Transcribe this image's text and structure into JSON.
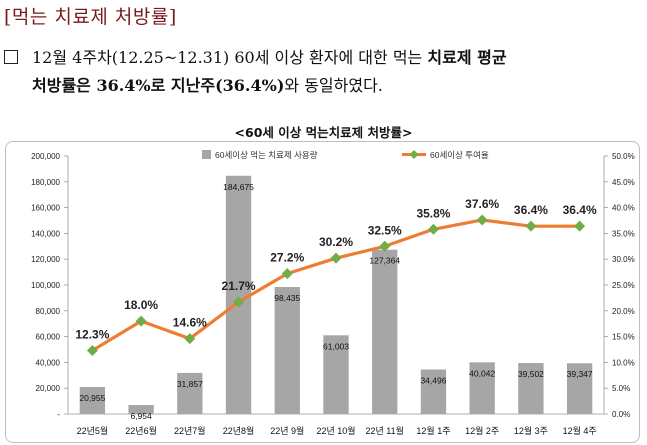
{
  "section_title": "[먹는 치료제 처방률]",
  "paragraph": {
    "part1": "12월 4주차(12.25~12.31) 60세 이상 환자에 대한 먹는 ",
    "part2_bold": "치료제 평균",
    "part3_bold": "처방률은 36.4%로 지난주(36.4%)",
    "part4": "와 동일하였다."
  },
  "chart_data": {
    "type": "bar",
    "title": "<60세 이상 먹는치료제 처방률>",
    "categories": [
      "22년5월",
      "22년6월",
      "22년7월",
      "22년8월",
      "22년 9월",
      "22년 10월",
      "22년 11월",
      "12월 1주",
      "12월 2주",
      "12월 3주",
      "12월 4주"
    ],
    "series": [
      {
        "name": "60세이상 먹는 치료제 사용량",
        "kind": "bar",
        "axis": "left",
        "color": "#a6a6a6",
        "values": [
          20955,
          6954,
          31857,
          184675,
          98435,
          61003,
          127364,
          34496,
          40042,
          39502,
          39347
        ],
        "labels": [
          "20,955",
          "6,954",
          "31,857",
          "184,675",
          "98,435",
          "61,003",
          "127,364",
          "34,496",
          "40,042",
          "39,502",
          "39,347"
        ]
      },
      {
        "name": "60세이상 투여율",
        "kind": "line",
        "axis": "right",
        "line_color": "#ed7d31",
        "marker_color": "#70ad47",
        "values": [
          12.3,
          18.0,
          14.6,
          21.7,
          27.2,
          30.2,
          32.5,
          35.8,
          37.6,
          36.4,
          36.4
        ],
        "labels": [
          "12.3%",
          "18.0%",
          "14.6%",
          "21.7%",
          "27.2%",
          "30.2%",
          "32.5%",
          "35.8%",
          "37.6%",
          "36.4%",
          "36.4%"
        ]
      }
    ],
    "y_left": {
      "min": 0,
      "max": 200000,
      "ticks": [
        {
          "v": 0,
          "label": "-"
        },
        {
          "v": 20000,
          "label": "20,000"
        },
        {
          "v": 40000,
          "label": "40,000"
        },
        {
          "v": 60000,
          "label": "60,000"
        },
        {
          "v": 80000,
          "label": "80,000"
        },
        {
          "v": 100000,
          "label": "100,000"
        },
        {
          "v": 120000,
          "label": "120,000"
        },
        {
          "v": 140000,
          "label": "140,000"
        },
        {
          "v": 160000,
          "label": "160,000"
        },
        {
          "v": 180000,
          "label": "180,000"
        },
        {
          "v": 200000,
          "label": "200,000"
        }
      ]
    },
    "y_right": {
      "min": 0,
      "max": 50,
      "ticks": [
        {
          "v": 0,
          "label": "0.0%"
        },
        {
          "v": 5,
          "label": "5.0%"
        },
        {
          "v": 10,
          "label": "10.0%"
        },
        {
          "v": 15,
          "label": "15.0%"
        },
        {
          "v": 20,
          "label": "20.0%"
        },
        {
          "v": 25,
          "label": "25.0%"
        },
        {
          "v": 30,
          "label": "30.0%"
        },
        {
          "v": 35,
          "label": "35.0%"
        },
        {
          "v": 40,
          "label": "40.0%"
        },
        {
          "v": 45,
          "label": "45.0%"
        },
        {
          "v": 50,
          "label": "50.0%"
        }
      ]
    },
    "legend_position": "top"
  }
}
